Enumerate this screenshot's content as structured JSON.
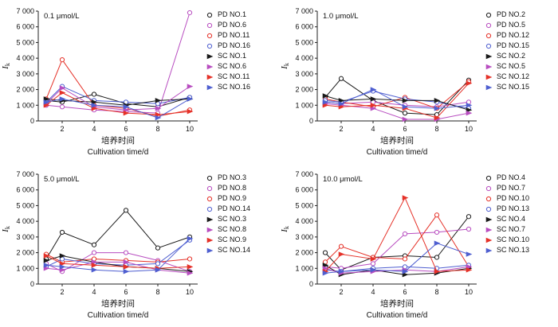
{
  "figure": {
    "ylabel": "I",
    "ylabel_sub": "k",
    "xlabel_cn": "培养时间",
    "xlabel_en": "Cultivation time/d",
    "x_ticks": [
      2,
      4,
      6,
      8,
      10
    ],
    "y_tick_labels": [
      "0",
      "1 000",
      "2 000",
      "3 000",
      "4 000",
      "5 000",
      "6 000",
      "7 000"
    ]
  },
  "colors": {
    "black": "#1a1a1a",
    "magenta": "#b84dc0",
    "red": "#e53128",
    "blue": "#4f5fd0"
  },
  "chart_data": [
    {
      "type": "line",
      "title": "0.1 μmol/L",
      "xlabel": "培养时间 Cultivation time/d",
      "ylabel": "Ik",
      "ylim": [
        0,
        7000
      ],
      "x": [
        1,
        2,
        4,
        6,
        8,
        10
      ],
      "legend_position": "right",
      "series": [
        {
          "name": "PD NO.1",
          "color": "black",
          "marker": "circle",
          "values": [
            1300,
            1200,
            1700,
            1100,
            900,
            1500
          ]
        },
        {
          "name": "PD NO.6",
          "color": "magenta",
          "marker": "circle",
          "values": [
            1000,
            900,
            700,
            600,
            500,
            6900
          ]
        },
        {
          "name": "PD NO.11",
          "color": "red",
          "marker": "circle",
          "values": [
            1400,
            3900,
            1000,
            800,
            300,
            700
          ]
        },
        {
          "name": "PD NO.16",
          "color": "blue",
          "marker": "circle",
          "values": [
            1200,
            2200,
            1300,
            1200,
            1100,
            1500
          ]
        },
        {
          "name": "SC NO.1",
          "color": "black",
          "marker": "triangle",
          "values": [
            1400,
            1300,
            1200,
            1000,
            1300,
            1400
          ]
        },
        {
          "name": "SC NO.6",
          "color": "magenta",
          "marker": "triangle",
          "values": [
            1100,
            2100,
            900,
            700,
            800,
            2200
          ]
        },
        {
          "name": "SC NO.11",
          "color": "red",
          "marker": "triangle",
          "values": [
            1000,
            1800,
            800,
            500,
            400,
            600
          ]
        },
        {
          "name": "SC NO.16",
          "color": "blue",
          "marker": "triangle",
          "values": [
            1200,
            1400,
            1000,
            900,
            200,
            1400
          ]
        }
      ]
    },
    {
      "type": "line",
      "title": "1.0 μmol/L",
      "xlabel": "培养时间 Cultivation time/d",
      "ylabel": "Ik",
      "ylim": [
        0,
        7000
      ],
      "x": [
        1,
        2,
        4,
        6,
        8,
        10
      ],
      "legend_position": "right",
      "series": [
        {
          "name": "PD NO.2",
          "color": "black",
          "marker": "circle",
          "values": [
            1500,
            2700,
            1300,
            500,
            400,
            2600
          ]
        },
        {
          "name": "PD NO.5",
          "color": "magenta",
          "marker": "circle",
          "values": [
            1200,
            1100,
            1200,
            1000,
            900,
            1200
          ]
        },
        {
          "name": "PD NO.12",
          "color": "red",
          "marker": "circle",
          "values": [
            1400,
            1200,
            900,
            1500,
            800,
            2500
          ]
        },
        {
          "name": "PD NO.15",
          "color": "blue",
          "marker": "circle",
          "values": [
            1300,
            1200,
            1900,
            1400,
            1200,
            800
          ]
        },
        {
          "name": "SC NO.2",
          "color": "black",
          "marker": "triangle",
          "values": [
            1600,
            1300,
            1400,
            1300,
            1300,
            700
          ]
        },
        {
          "name": "SC NO.5",
          "color": "magenta",
          "marker": "triangle",
          "values": [
            1100,
            1000,
            800,
            100,
            100,
            500
          ]
        },
        {
          "name": "SC NO.12",
          "color": "red",
          "marker": "triangle",
          "values": [
            1000,
            900,
            1000,
            800,
            200,
            2400
          ]
        },
        {
          "name": "SC NO.15",
          "color": "blue",
          "marker": "triangle",
          "values": [
            1200,
            1100,
            2000,
            900,
            800,
            1000
          ]
        }
      ]
    },
    {
      "type": "line",
      "title": "5.0 μmol/L",
      "xlabel": "培养时间 Cultivation time/d",
      "ylabel": "Ik",
      "ylim": [
        0,
        7000
      ],
      "x": [
        1,
        2,
        4,
        6,
        8,
        10
      ],
      "legend_position": "right",
      "series": [
        {
          "name": "PD NO.3",
          "color": "black",
          "marker": "circle",
          "values": [
            1600,
            3300,
            2500,
            4700,
            2300,
            3000
          ]
        },
        {
          "name": "PD NO.8",
          "color": "magenta",
          "marker": "circle",
          "values": [
            1300,
            800,
            2000,
            2000,
            1500,
            800
          ]
        },
        {
          "name": "PD NO.9",
          "color": "red",
          "marker": "circle",
          "values": [
            1900,
            1400,
            1600,
            1500,
            1400,
            1600
          ]
        },
        {
          "name": "PD NO.14",
          "color": "blue",
          "marker": "circle",
          "values": [
            1100,
            1600,
            1300,
            1200,
            1300,
            2800
          ]
        },
        {
          "name": "SC NO.3",
          "color": "black",
          "marker": "triangle",
          "values": [
            1500,
            1800,
            1400,
            1100,
            1000,
            800
          ]
        },
        {
          "name": "SC NO.8",
          "color": "magenta",
          "marker": "triangle",
          "values": [
            1000,
            900,
            1400,
            1400,
            900,
            700
          ]
        },
        {
          "name": "SC NO.9",
          "color": "red",
          "marker": "triangle",
          "values": [
            1800,
            1300,
            1200,
            1100,
            1000,
            1100
          ]
        },
        {
          "name": "SC NO.14",
          "color": "blue",
          "marker": "triangle",
          "values": [
            1200,
            1100,
            900,
            800,
            900,
            2900
          ]
        }
      ]
    },
    {
      "type": "line",
      "title": "10.0 μmol/L",
      "xlabel": "培养时间 Cultivation time/d",
      "ylabel": "Ik",
      "ylim": [
        0,
        7000
      ],
      "x": [
        1,
        2,
        4,
        6,
        8,
        10
      ],
      "legend_position": "right",
      "series": [
        {
          "name": "PD NO.4",
          "color": "black",
          "marker": "circle",
          "values": [
            2000,
            900,
            1700,
            1800,
            1700,
            4300
          ]
        },
        {
          "name": "PD NO.7",
          "color": "magenta",
          "marker": "circle",
          "values": [
            1100,
            1000,
            1300,
            3200,
            3300,
            3500
          ]
        },
        {
          "name": "PD NO.10",
          "color": "red",
          "marker": "circle",
          "values": [
            1400,
            2400,
            1700,
            1600,
            4400,
            1100
          ]
        },
        {
          "name": "PD NO.13",
          "color": "blue",
          "marker": "circle",
          "values": [
            900,
            800,
            1000,
            1100,
            1000,
            1200
          ]
        },
        {
          "name": "SC NO.4",
          "color": "black",
          "marker": "triangle",
          "values": [
            1200,
            600,
            900,
            600,
            700,
            1000
          ]
        },
        {
          "name": "SC NO.7",
          "color": "magenta",
          "marker": "triangle",
          "values": [
            1000,
            700,
            800,
            900,
            800,
            1100
          ]
        },
        {
          "name": "SC NO.10",
          "color": "red",
          "marker": "triangle",
          "values": [
            800,
            1900,
            1600,
            5500,
            800,
            900
          ]
        },
        {
          "name": "SC NO.13",
          "color": "blue",
          "marker": "triangle",
          "values": [
            700,
            800,
            900,
            800,
            2600,
            1900
          ]
        }
      ]
    }
  ]
}
